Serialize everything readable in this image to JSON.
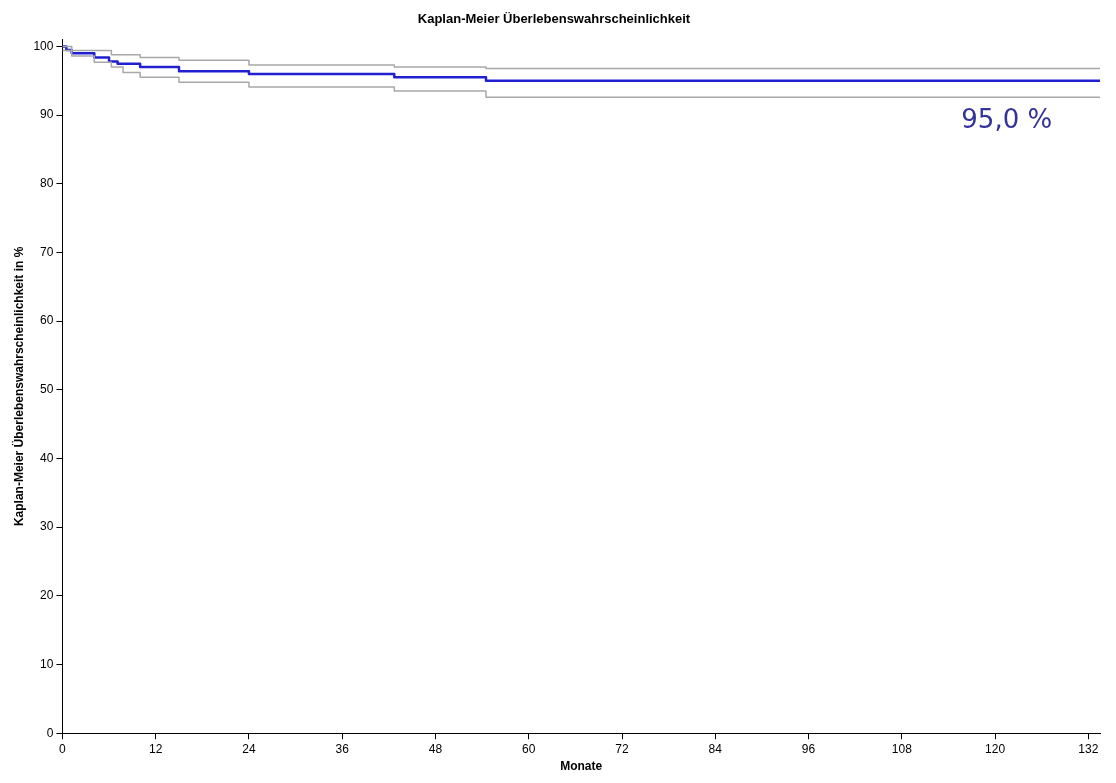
{
  "chart_data": {
    "type": "step",
    "title": "Kaplan-Meier Überlebenswahrscheinlichkeit",
    "xlabel": "Monate",
    "ylabel": "Kaplan-Meier Überlebenswahrscheinlichkeit in %",
    "xlim": [
      0,
      133.5
    ],
    "ylim": [
      0,
      101
    ],
    "xticks": [
      0,
      12,
      24,
      36,
      48,
      60,
      72,
      84,
      96,
      108,
      120,
      132
    ],
    "yticks": [
      0,
      10,
      20,
      30,
      40,
      50,
      60,
      70,
      80,
      90,
      100
    ],
    "grid": false,
    "legend": false,
    "marker": "none",
    "line_style": "solid",
    "series": [
      {
        "color": "#a8a8a8",
        "x": [
          0,
          6.3,
          10,
          15,
          24,
          42.7,
          54.5,
          133.5
        ],
        "values": [
          99.4,
          98.8,
          98.4,
          98.0,
          97.3,
          97.0,
          96.8,
          96.8
        ]
      },
      {
        "color": "#a8a8a8",
        "x": [
          0,
          1.2,
          4.1,
          6.3,
          7.8,
          10,
          15,
          24,
          42.7,
          54.5,
          133.5
        ],
        "values": [
          100,
          98.6,
          97.7,
          97.0,
          96.2,
          95.5,
          94.8,
          94.1,
          93.5,
          92.6,
          92.6
        ]
      },
      {
        "color": "#2020d0",
        "x": [
          0,
          0.5,
          1.2,
          4.1,
          6,
          7.1,
          10,
          15,
          24,
          42.7,
          54.5,
          133.5
        ],
        "values": [
          100,
          99.5,
          99.0,
          98.4,
          97.8,
          97.5,
          97.0,
          96.4,
          96.0,
          95.5,
          95.0,
          95.0
        ]
      }
    ],
    "annotations": [
      {
        "text": "95,0 %",
        "x": 121.5,
        "y": 95.0
      }
    ]
  }
}
